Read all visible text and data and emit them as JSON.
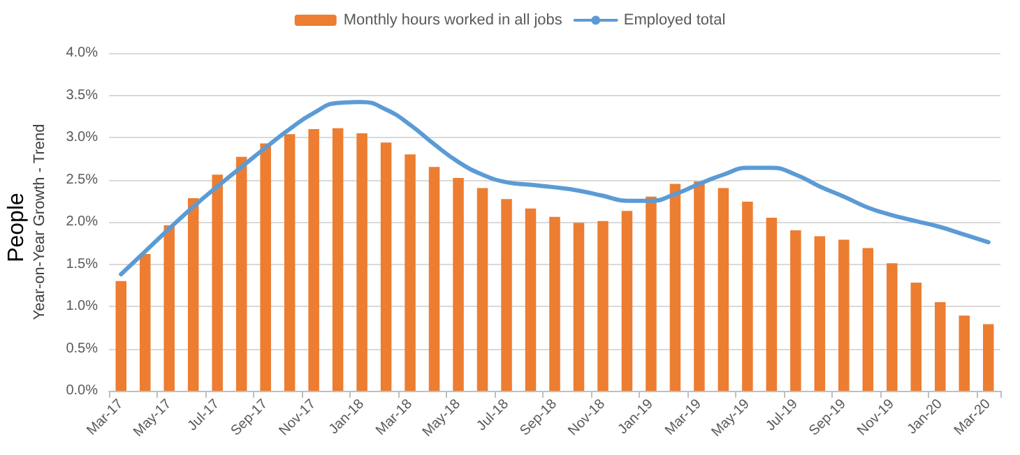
{
  "chart_data": {
    "type": "bar",
    "ylabel": "Year-on-Year Growth - Trend",
    "annotations": [
      "People"
    ],
    "categories": [
      "Mar-17",
      null,
      "May-17",
      null,
      "Jul-17",
      null,
      "Sep-17",
      null,
      "Nov-17",
      null,
      "Jan-18",
      null,
      "Mar-18",
      null,
      "May-18",
      null,
      "Jul-18",
      null,
      "Sep-18",
      null,
      "Nov-18",
      null,
      "Jan-19",
      null,
      "Mar-19",
      null,
      "May-19",
      null,
      "Jul-19",
      null,
      "Sep-19",
      null,
      "Nov-19",
      null,
      "Jan-20",
      null,
      "Mar-20"
    ],
    "series": [
      {
        "name": "Monthly hours worked in all jobs",
        "color": "#ed7d31",
        "values": [
          1.3,
          1.62,
          1.96,
          2.28,
          2.56,
          2.77,
          2.93,
          3.04,
          3.1,
          3.11,
          3.05,
          2.94,
          2.8,
          2.65,
          2.52,
          2.4,
          2.27,
          2.16,
          2.06,
          1.99,
          2.01,
          2.13,
          2.3,
          2.45,
          2.48,
          2.4,
          2.24,
          2.05,
          1.9,
          1.83,
          1.79,
          1.69,
          1.51,
          1.28,
          1.05,
          0.89,
          0.79
        ]
      },
      {
        "name": "Employed total",
        "type": "line",
        "color": "#5b9bd5",
        "values": [
          1.38,
          1.65,
          1.92,
          2.18,
          2.42,
          2.65,
          2.88,
          3.1,
          3.29,
          3.41,
          3.42,
          3.33,
          3.15,
          2.92,
          2.71,
          2.56,
          2.47,
          2.44,
          2.41,
          2.37,
          2.31,
          2.25,
          2.25,
          2.33,
          2.45,
          2.56,
          2.64,
          2.64,
          2.56,
          2.42,
          2.3,
          2.17,
          2.08,
          2.01,
          1.94,
          1.85,
          1.76
        ]
      }
    ],
    "ylim": [
      0,
      4
    ],
    "yticks": [
      {
        "value": 0,
        "label": "0.0%"
      },
      {
        "value": 0.5,
        "label": "0.5%"
      },
      {
        "value": 1,
        "label": "1.0%"
      },
      {
        "value": 1.5,
        "label": "1.5%"
      },
      {
        "value": 2,
        "label": "2.0%"
      },
      {
        "value": 2.5,
        "label": "2.5%"
      },
      {
        "value": 3,
        "label": "3.0%"
      },
      {
        "value": 3.5,
        "label": "3.5%"
      },
      {
        "value": 4,
        "label": "4.0%"
      }
    ],
    "grid": "y",
    "legend": "top",
    "marker": "none",
    "line_style": "solid"
  }
}
